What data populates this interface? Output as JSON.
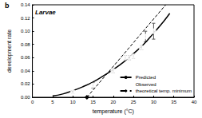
{
  "chart_data": {
    "type": "scatter",
    "title": "b",
    "subtitle": "Larvae",
    "x_label": "temperature (°C)",
    "y_label": "development rate",
    "xlim": [
      0,
      40
    ],
    "xticks": [
      0,
      5,
      10,
      15,
      20,
      25,
      30,
      35,
      40
    ],
    "ylim": [
      0,
      0.14
    ],
    "yticks": [
      {
        "value": 0,
        "label": "0.00"
      },
      {
        "value": 0.02,
        "label": "0.02"
      },
      {
        "value": 0.04,
        "label": "0.04"
      },
      {
        "value": 0.06,
        "label": "0.06"
      },
      {
        "value": 0.08,
        "label": "0.08"
      },
      {
        "value": 0.1,
        "label": "0.10"
      },
      {
        "value": 0.12,
        "label": "0.12"
      },
      {
        "value": 0.14,
        "label": "0.14"
      }
    ],
    "grid": false,
    "legend": "lower right",
    "series": [
      {
        "name": "Predicted",
        "type": "line",
        "color": "#000000",
        "line_style": "solid",
        "marker": "none",
        "x": [
          5,
          7.5,
          10,
          12.5,
          15,
          17.5,
          20,
          22.5,
          25,
          27.5,
          30,
          32.5,
          34
        ],
        "values": [
          0.002,
          0.005,
          0.01,
          0.016,
          0.023,
          0.032,
          0.042,
          0.053,
          0.066,
          0.08,
          0.097,
          0.115,
          0.127
        ]
      },
      {
        "name": "Observed",
        "type": "scatter",
        "color": "#555555",
        "marker": "circle",
        "x": [
          10,
          15,
          20,
          23,
          24,
          25,
          27,
          28,
          30
        ],
        "values": [
          0.008,
          0.018,
          0.04,
          0.06,
          0.06,
          0.062,
          0.075,
          0.092,
          0.1
        ],
        "errors": [
          0.002,
          0.004,
          0.003,
          0.003,
          0.003,
          0.003,
          0.003,
          0.008,
          0.012
        ]
      },
      {
        "name": "theoretical temp. minimum",
        "type": "line",
        "color": "#000000",
        "line_style": "dashed",
        "marker": "diamond",
        "x": [
          13.5,
          33
        ],
        "values": [
          0,
          0.14
        ]
      }
    ]
  }
}
